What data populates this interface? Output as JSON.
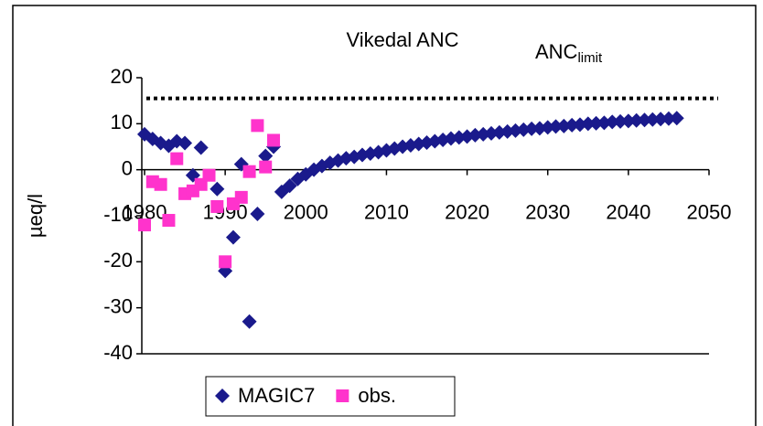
{
  "chart_data": {
    "type": "scatter",
    "title": "Vikedal ANC",
    "annotation": {
      "text": "ANC",
      "subscript": "limit"
    },
    "reference_line": {
      "value": 15.5,
      "color": "#000000"
    },
    "y_label": "µeq/l",
    "xlim": [
      1980,
      2050
    ],
    "xticks": [
      1980,
      1990,
      2000,
      2010,
      2020,
      2030,
      2040,
      2050
    ],
    "ylim": [
      -40,
      20
    ],
    "yticks": [
      -40,
      -30,
      -20,
      -10,
      0,
      10,
      20
    ],
    "legend": "bottom",
    "series": [
      {
        "name": "MAGIC7",
        "color": "#1a1a8c",
        "marker": "diamond",
        "x": [
          1980,
          1981,
          1982,
          1983,
          1984,
          1985,
          1986,
          1987,
          1989,
          1990,
          1991,
          1992,
          1993,
          1994,
          1995,
          1996,
          1997,
          1998,
          1999,
          2000,
          2001,
          2002,
          2003,
          2004,
          2005,
          2006,
          2007,
          2008,
          2009,
          2010,
          2011,
          2012,
          2013,
          2014,
          2015,
          2016,
          2017,
          2018,
          2019,
          2020,
          2021,
          2022,
          2023,
          2024,
          2025,
          2026,
          2027,
          2028,
          2029,
          2030,
          2031,
          2032,
          2033,
          2034,
          2035,
          2036,
          2037,
          2038,
          2039,
          2040,
          2041,
          2042,
          2043,
          2044,
          2045,
          2046
        ],
        "values": [
          7.7,
          6.7,
          5.8,
          5.2,
          6.2,
          5.8,
          -1.2,
          4.8,
          -4.2,
          -22,
          -14.7,
          1.2,
          -33,
          -9.6,
          3,
          5,
          -4.8,
          -3.5,
          -2,
          -1,
          0,
          0.8,
          1.5,
          2,
          2.5,
          2.8,
          3.2,
          3.5,
          3.8,
          4.2,
          4.6,
          5,
          5.3,
          5.6,
          5.9,
          6.2,
          6.5,
          6.8,
          7,
          7.2,
          7.5,
          7.7,
          7.9,
          8.1,
          8.3,
          8.5,
          8.7,
          8.9,
          9,
          9.2,
          9.4,
          9.5,
          9.7,
          9.8,
          10,
          10.1,
          10.2,
          10.4,
          10.5,
          10.6,
          10.7,
          10.8,
          10.9,
          11,
          11.1,
          11.2
        ]
      },
      {
        "name": "obs.",
        "color": "#ff33cc",
        "marker": "square",
        "x": [
          1980,
          1981,
          1982,
          1983,
          1984,
          1985,
          1986,
          1987,
          1988,
          1989,
          1990,
          1991,
          1992,
          1993,
          1994,
          1995,
          1996
        ],
        "values": [
          -12,
          -2.6,
          -3.2,
          -11,
          2.4,
          -5.2,
          -4.6,
          -3.2,
          -1.2,
          -8,
          -20,
          -7.4,
          -6,
          -0.4,
          9.6,
          0.6,
          6.4
        ]
      }
    ]
  }
}
